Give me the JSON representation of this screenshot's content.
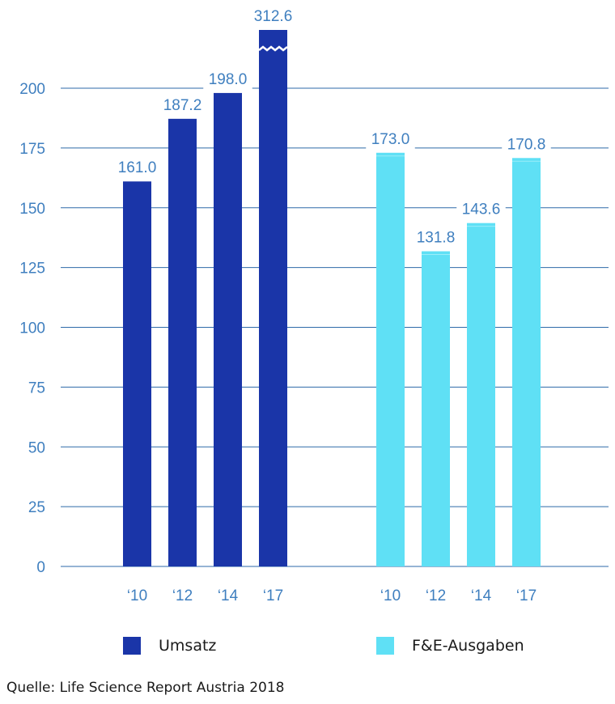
{
  "chart_data": {
    "type": "bar",
    "ylim": [
      0,
      200
    ],
    "yticks": [
      0,
      25,
      50,
      75,
      100,
      125,
      150,
      175,
      200
    ],
    "axis_break": "Umsatz '17 bar truncated (value exceeds axis)",
    "grid": true,
    "legend_position": "bottom",
    "series": [
      {
        "name": "Umsatz",
        "color": "#1a35a8",
        "categories": [
          "‘10",
          "‘12",
          "‘14",
          "‘17"
        ],
        "values": [
          161.0,
          187.2,
          198.0,
          312.6
        ],
        "labels": [
          "161.0",
          "187.2",
          "198.0",
          "312.6"
        ]
      },
      {
        "name": "F&E-Ausgaben",
        "color": "#5fe0f5",
        "categories": [
          "‘10",
          "‘12",
          "‘14",
          "‘17"
        ],
        "values": [
          173.0,
          131.8,
          143.6,
          170.8
        ],
        "labels": [
          "173.0",
          "131.8",
          "143.6",
          "170.8"
        ]
      }
    ]
  },
  "legend": {
    "items": [
      {
        "label": "Umsatz",
        "color": "#1a35a8"
      },
      {
        "label": "F&E-Ausgaben",
        "color": "#5fe0f5"
      }
    ]
  },
  "source": "Quelle: Life Science Report Austria 2018"
}
